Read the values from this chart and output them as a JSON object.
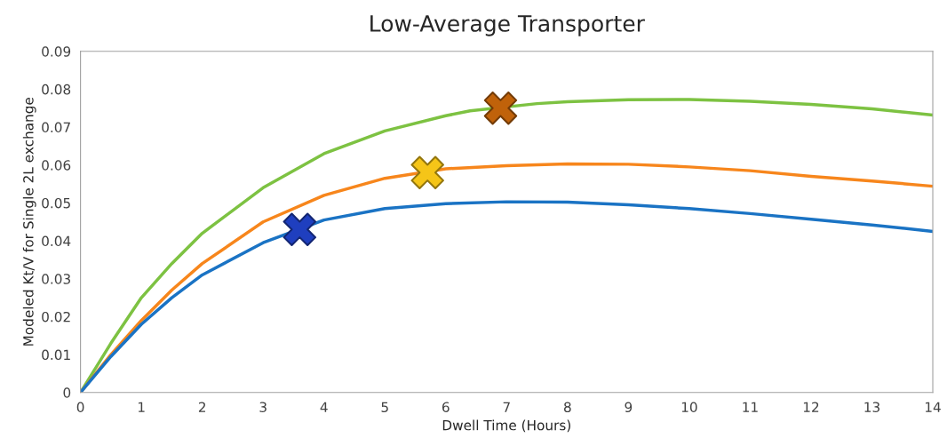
{
  "chart_data": {
    "type": "line",
    "title": "Low-Average Transporter",
    "xlabel": "Dwell Time (Hours)",
    "ylabel": "Modeled Kt/V for Single 2L exchange",
    "xlim": [
      0,
      14
    ],
    "xticks": [
      0,
      1,
      2,
      3,
      4,
      5,
      6,
      7,
      8,
      9,
      10,
      11,
      12,
      13,
      14
    ],
    "ylim": [
      0,
      0.09
    ],
    "yticks": [
      0,
      0.01,
      0.02,
      0.03,
      0.04,
      0.05,
      0.06,
      0.07,
      0.08,
      0.09
    ],
    "grid": false,
    "marker": "none",
    "line_style": "solid",
    "series": [
      {
        "color": "#7dc242",
        "x": [
          0,
          0.5,
          1,
          1.5,
          2,
          3,
          4,
          5,
          6,
          6.4,
          7.5,
          8,
          9,
          10,
          11,
          12,
          13,
          14
        ],
        "values": [
          0,
          0.013,
          0.025,
          0.034,
          0.042,
          0.054,
          0.063,
          0.069,
          0.073,
          0.0743,
          0.0762,
          0.0767,
          0.0772,
          0.0773,
          0.0768,
          0.076,
          0.0748,
          0.0732
        ]
      },
      {
        "color": "#f7861c",
        "x": [
          0,
          0.5,
          1,
          1.5,
          2,
          3,
          4,
          5,
          6,
          7,
          8,
          9,
          10,
          11,
          12,
          13,
          14
        ],
        "values": [
          0,
          0.01,
          0.019,
          0.027,
          0.034,
          0.045,
          0.052,
          0.0565,
          0.059,
          0.0598,
          0.0603,
          0.0602,
          0.0595,
          0.0585,
          0.057,
          0.0558,
          0.0544
        ]
      },
      {
        "color": "#1a73c4",
        "x": [
          0,
          0.5,
          1,
          1.5,
          2,
          3,
          4,
          5,
          6,
          7,
          8,
          9,
          10,
          11,
          12,
          13,
          14
        ],
        "values": [
          0,
          0.0095,
          0.018,
          0.025,
          0.031,
          0.0395,
          0.0455,
          0.0485,
          0.0498,
          0.0503,
          0.0502,
          0.0495,
          0.0485,
          0.0472,
          0.0457,
          0.0442,
          0.0425
        ]
      },
      {
        "type": "scatter",
        "marker": "cross",
        "color": "#1f3fbf",
        "x": [
          3.6
        ],
        "values": [
          0.043
        ]
      },
      {
        "type": "scatter",
        "marker": "cross",
        "color": "#f5c518",
        "x": [
          5.7
        ],
        "values": [
          0.058
        ]
      },
      {
        "type": "scatter",
        "marker": "cross",
        "color": "#c0620a",
        "x": [
          6.9
        ],
        "values": [
          0.075
        ]
      }
    ]
  }
}
